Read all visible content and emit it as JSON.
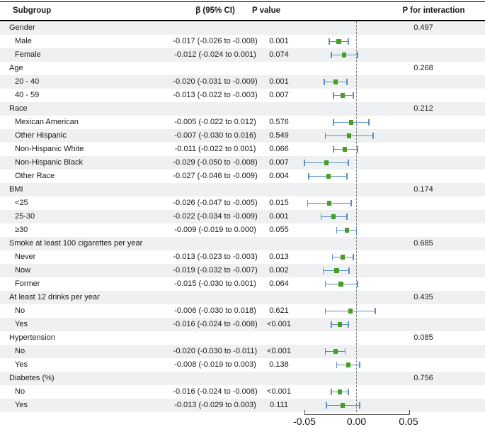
{
  "colors": {
    "ci_bar": "#5b8ec6",
    "marker": "#469e23",
    "row_shade": "#eef0f2",
    "zero_line": "#7f7f7f",
    "axis": "#4d4d4d",
    "rule": "#000000"
  },
  "chart_data": {
    "type": "forest",
    "title": "",
    "columns": {
      "subgroup": "Subgroup",
      "beta": "β (95% CI)",
      "pvalue": "P value",
      "p_interaction": "P for interaction"
    },
    "x_axis": {
      "range": [
        -0.05,
        0.05
      ],
      "zero_reference": 0,
      "ticks": [
        {
          "label": "-0.05",
          "value": -0.05
        },
        {
          "label": "0.00",
          "value": 0.0
        },
        {
          "label": "0.05",
          "value": 0.05
        }
      ]
    },
    "rows": [
      {
        "kind": "group",
        "label": "Gender",
        "p_interaction": "0.497"
      },
      {
        "kind": "item",
        "label": "Male",
        "beta_text": "-0.017 (-0.026 to -0.008)",
        "p_value": "0.001",
        "estimate": -0.017,
        "ci_low": -0.026,
        "ci_high": -0.008
      },
      {
        "kind": "item",
        "label": "Female",
        "beta_text": "-0.012 (-0.024 to 0.001)",
        "p_value": "0.074",
        "estimate": -0.012,
        "ci_low": -0.024,
        "ci_high": 0.001
      },
      {
        "kind": "group",
        "label": "Age",
        "p_interaction": "0.268"
      },
      {
        "kind": "item",
        "label": "20 - 40",
        "beta_text": "-0.020 (-0.031 to -0.009)",
        "p_value": "0.001",
        "estimate": -0.02,
        "ci_low": -0.031,
        "ci_high": -0.009
      },
      {
        "kind": "item",
        "label": "40 - 59",
        "beta_text": "-0.013 (-0.022 to -0.003)",
        "p_value": "0.007",
        "estimate": -0.013,
        "ci_low": -0.022,
        "ci_high": -0.003
      },
      {
        "kind": "group",
        "label": "Race",
        "p_interaction": "0.212"
      },
      {
        "kind": "item",
        "label": "Mexican American",
        "beta_text": "-0.005 (-0.022 to 0.012)",
        "p_value": "0.576",
        "estimate": -0.005,
        "ci_low": -0.022,
        "ci_high": 0.012
      },
      {
        "kind": "item",
        "label": "Other Hispanic",
        "beta_text": "-0.007 (-0.030 to 0.016)",
        "p_value": "0.549",
        "estimate": -0.007,
        "ci_low": -0.03,
        "ci_high": 0.016
      },
      {
        "kind": "item",
        "label": "Non-Hispanic White",
        "beta_text": "-0.011 (-0.022 to 0.001)",
        "p_value": "0.066",
        "estimate": -0.011,
        "ci_low": -0.022,
        "ci_high": 0.001
      },
      {
        "kind": "item",
        "label": "Non-Hispanic Black",
        "beta_text": "-0.029 (-0.050 to -0.008)",
        "p_value": "0.007",
        "estimate": -0.029,
        "ci_low": -0.05,
        "ci_high": -0.008
      },
      {
        "kind": "item",
        "label": "Other Race",
        "beta_text": "-0.027 (-0.046 to -0.009)",
        "p_value": "0.004",
        "estimate": -0.027,
        "ci_low": -0.046,
        "ci_high": -0.009
      },
      {
        "kind": "group",
        "label": "BMI",
        "p_interaction": "0.174"
      },
      {
        "kind": "item",
        "label": "<25",
        "beta_text": "-0.026 (-0.047 to -0.005)",
        "p_value": "0.015",
        "estimate": -0.026,
        "ci_low": -0.047,
        "ci_high": -0.005
      },
      {
        "kind": "item",
        "label": "25-30",
        "beta_text": "-0.022 (-0.034 to -0.009)",
        "p_value": "0.001",
        "estimate": -0.022,
        "ci_low": -0.034,
        "ci_high": -0.009
      },
      {
        "kind": "item",
        "label": "≥30",
        "beta_text": "-0.009 (-0.019 to 0.000)",
        "p_value": "0.055",
        "estimate": -0.009,
        "ci_low": -0.019,
        "ci_high": 0.0
      },
      {
        "kind": "group",
        "label": "Smoke at least 100 cigarettes per year",
        "p_interaction": "0.685"
      },
      {
        "kind": "item",
        "label": "Never",
        "beta_text": "-0.013 (-0.023 to -0.003)",
        "p_value": "0.013",
        "estimate": -0.013,
        "ci_low": -0.023,
        "ci_high": -0.003
      },
      {
        "kind": "item",
        "label": "Now",
        "beta_text": "-0.019 (-0.032 to -0.007)",
        "p_value": "0.002",
        "estimate": -0.019,
        "ci_low": -0.032,
        "ci_high": -0.007
      },
      {
        "kind": "item",
        "label": "Former",
        "beta_text": "-0.015 (-0.030 to 0.001)",
        "p_value": "0.064",
        "estimate": -0.015,
        "ci_low": -0.03,
        "ci_high": 0.001
      },
      {
        "kind": "group",
        "label": "At least 12 drinks per year",
        "p_interaction": "0.435"
      },
      {
        "kind": "item",
        "label": "No",
        "beta_text": "-0.006 (-0.030 to 0.018)",
        "p_value": "0.621",
        "estimate": -0.006,
        "ci_low": -0.03,
        "ci_high": 0.018
      },
      {
        "kind": "item",
        "label": "Yes",
        "beta_text": "-0.016 (-0.024 to -0.008)",
        "p_value": "<0.001",
        "estimate": -0.016,
        "ci_low": -0.024,
        "ci_high": -0.008
      },
      {
        "kind": "group",
        "label": "Hypertension",
        "p_interaction": "0.085"
      },
      {
        "kind": "item",
        "label": "No",
        "beta_text": "-0.020 (-0.030 to -0.011)",
        "p_value": "<0.001",
        "estimate": -0.02,
        "ci_low": -0.03,
        "ci_high": -0.011
      },
      {
        "kind": "item",
        "label": "Yes",
        "beta_text": "-0.008 (-0.019 to 0.003)",
        "p_value": "0.138",
        "estimate": -0.008,
        "ci_low": -0.019,
        "ci_high": 0.003
      },
      {
        "kind": "group",
        "label": "Diabetes (%)",
        "p_interaction": "0.756"
      },
      {
        "kind": "item",
        "label": "No",
        "beta_text": "-0.016 (-0.024 to -0.008)",
        "p_value": "<0.001",
        "estimate": -0.016,
        "ci_low": -0.024,
        "ci_high": -0.008
      },
      {
        "kind": "item",
        "label": "Yes",
        "beta_text": "-0.013 (-0.029 to 0.003)",
        "p_value": "0.111",
        "estimate": -0.013,
        "ci_low": -0.029,
        "ci_high": 0.003
      }
    ]
  }
}
